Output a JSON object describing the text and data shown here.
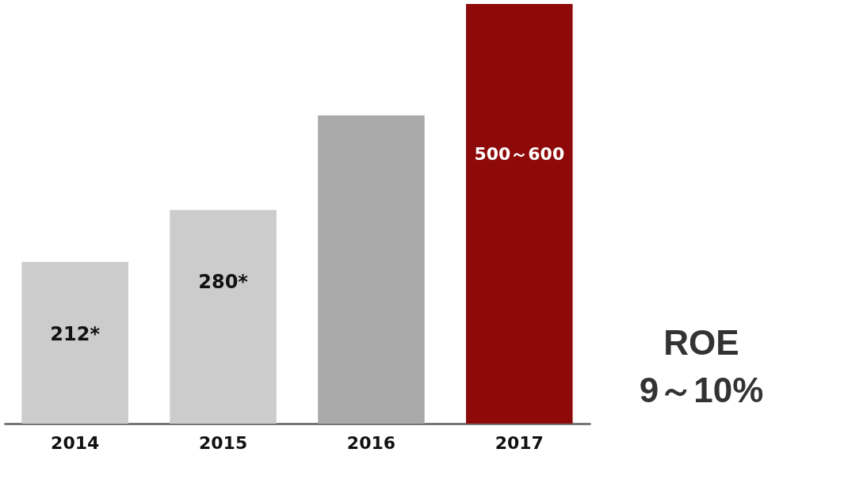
{
  "chart_data": {
    "type": "bar",
    "categories": [
      "2014",
      "2015",
      "2016",
      "2017"
    ],
    "values": [
      212,
      280,
      404,
      550
    ],
    "colors": [
      "#cccccc",
      "#cccccc",
      "#aaaaaa",
      "#8e0a0a"
    ],
    "value_labels": [
      "212*",
      "280*",
      null,
      null
    ],
    "annotations": [
      "500～600",
      "ROE 9～10%"
    ]
  }
}
